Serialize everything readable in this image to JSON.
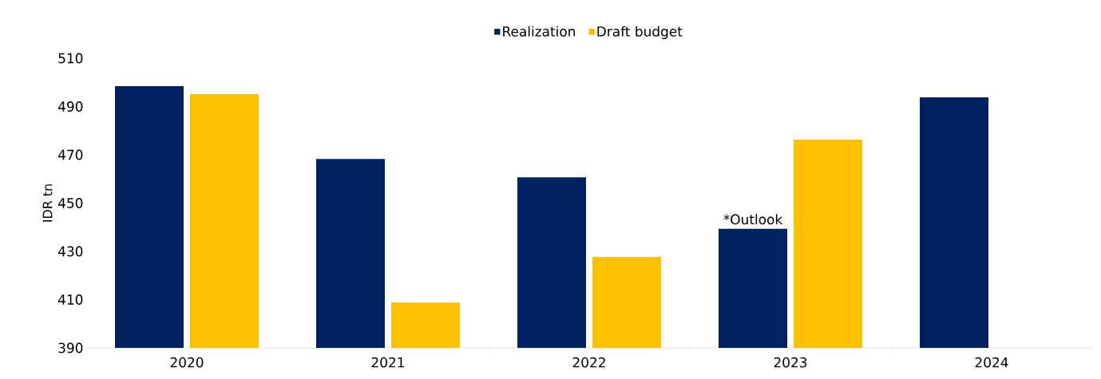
{
  "chart_data": {
    "type": "bar",
    "ylabel": "IDR tn",
    "categories": [
      "2020",
      "2021",
      "2022",
      "2023",
      "2024"
    ],
    "series": [
      {
        "name": "Realization",
        "color": "#002060",
        "values": [
          498.4,
          468.3,
          460.7,
          439.3,
          493.8
        ]
      },
      {
        "name": "Draft budget",
        "color": "#ffc000",
        "values": [
          495.1,
          408.8,
          427.7,
          476.3,
          null
        ]
      }
    ],
    "ylim": [
      390,
      510
    ],
    "yticks": [
      390,
      410,
      430,
      450,
      470,
      490,
      510
    ],
    "annotations": [
      {
        "text": "*Outlook",
        "x": "2023",
        "y": 439.3
      }
    ],
    "legend": "top",
    "grid": false
  }
}
